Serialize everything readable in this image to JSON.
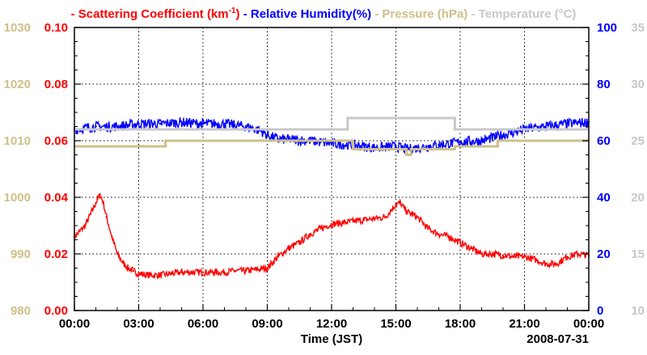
{
  "chart_data": {
    "type": "line",
    "title_legend": [
      {
        "name": "Scattering Coefficient (km",
        "suffix": ")",
        "sup": "-1",
        "color": "#ff0000",
        "marker": "-"
      },
      {
        "name": "Relative Humidity(%)",
        "color": "#0000ff",
        "marker": "-"
      },
      {
        "name": "Pressure (hPa)",
        "color": "#cdc08a",
        "marker": "-"
      },
      {
        "name": "Temperature (°C)",
        "color": "#c8c8c8",
        "marker": "-"
      }
    ],
    "xlabel": "Time (JST)",
    "date_label": "2008-07-31",
    "x_range": [
      0,
      24
    ],
    "x_ticks": [
      {
        "value": 0,
        "label": "00:00"
      },
      {
        "value": 3,
        "label": "03:00"
      },
      {
        "value": 6,
        "label": "06:00"
      },
      {
        "value": 9,
        "label": "09:00"
      },
      {
        "value": 12,
        "label": "12:00"
      },
      {
        "value": 15,
        "label": "15:00"
      },
      {
        "value": 18,
        "label": "18:00"
      },
      {
        "value": 21,
        "label": "21:00"
      },
      {
        "value": 24,
        "label": "00:00"
      }
    ],
    "axes": {
      "pressure": {
        "range": [
          980,
          1030
        ],
        "ticks": [
          "980",
          "990",
          "1000",
          "1010",
          "1020",
          "1030"
        ],
        "color": "#cdc08a",
        "side": "left-outer"
      },
      "scattering": {
        "range": [
          0,
          0.1
        ],
        "ticks": [
          "0.00",
          "0.02",
          "0.04",
          "0.06",
          "0.08",
          "0.10"
        ],
        "color": "#ff0000",
        "side": "left-inner"
      },
      "humidity": {
        "range": [
          0,
          100
        ],
        "ticks": [
          "0",
          "20",
          "40",
          "60",
          "80",
          "100"
        ],
        "color": "#0000ff",
        "side": "right-inner"
      },
      "temperature": {
        "range": [
          10,
          35
        ],
        "ticks": [
          "10",
          "15",
          "20",
          "25",
          "30",
          "35"
        ],
        "color": "#c8c8c8",
        "side": "right-outer"
      }
    },
    "series": [
      {
        "name": "Scattering Coefficient",
        "axis": "scattering",
        "color": "#ff0000",
        "x": [
          0.0,
          0.25,
          0.5,
          0.75,
          1.0,
          1.2,
          1.35,
          1.5,
          1.75,
          2.0,
          2.25,
          2.5,
          2.75,
          3.0,
          3.5,
          4.0,
          4.5,
          5.0,
          5.5,
          6.0,
          6.5,
          7.0,
          7.5,
          8.0,
          8.5,
          9.0,
          9.5,
          10.0,
          10.5,
          11.0,
          11.5,
          12.0,
          12.5,
          13.0,
          13.5,
          14.0,
          14.5,
          15.0,
          15.2,
          15.5,
          16.0,
          16.5,
          17.0,
          17.5,
          18.0,
          18.5,
          19.0,
          19.5,
          20.0,
          20.5,
          21.0,
          21.5,
          22.0,
          22.5,
          23.0,
          23.5,
          24.0
        ],
        "values": [
          0.026,
          0.028,
          0.03,
          0.034,
          0.038,
          0.041,
          0.038,
          0.033,
          0.026,
          0.02,
          0.017,
          0.015,
          0.014,
          0.013,
          0.0125,
          0.0125,
          0.013,
          0.0135,
          0.0135,
          0.0135,
          0.0135,
          0.0135,
          0.014,
          0.014,
          0.0145,
          0.015,
          0.019,
          0.022,
          0.024,
          0.027,
          0.029,
          0.0305,
          0.031,
          0.0315,
          0.032,
          0.0325,
          0.033,
          0.0375,
          0.038,
          0.035,
          0.033,
          0.029,
          0.027,
          0.026,
          0.024,
          0.022,
          0.02,
          0.02,
          0.0195,
          0.019,
          0.019,
          0.018,
          0.0165,
          0.0165,
          0.019,
          0.02,
          0.0195
        ]
      },
      {
        "name": "Relative Humidity",
        "axis": "humidity",
        "color": "#0000ff",
        "x": [
          0.0,
          1.0,
          2.0,
          3.0,
          4.0,
          5.0,
          6.0,
          7.0,
          8.0,
          8.7,
          9.0,
          9.5,
          10.0,
          11.0,
          12.0,
          13.0,
          14.0,
          15.0,
          15.5,
          16.0,
          16.5,
          17.0,
          18.0,
          19.0,
          19.5,
          20.0,
          21.0,
          22.0,
          23.0,
          24.0
        ],
        "values": [
          64,
          65,
          65,
          66,
          66,
          66.5,
          66,
          66,
          65,
          63.5,
          62,
          60.5,
          60.5,
          60,
          59,
          58.5,
          57.5,
          58,
          57,
          57.5,
          58,
          58.5,
          59.5,
          60,
          61,
          62,
          64,
          65,
          66,
          66.5
        ]
      },
      {
        "name": "Pressure",
        "axis": "pressure",
        "color": "#cdc08a",
        "step": true,
        "x": [
          0.0,
          4.25,
          4.25,
          13.0,
          13.0,
          15.5,
          15.5,
          15.7,
          15.7,
          17.75,
          17.75,
          19.75,
          19.75,
          24.0
        ],
        "values": [
          1009,
          1009,
          1010,
          1010,
          1008.5,
          1008.5,
          1007.5,
          1007.5,
          1008.5,
          1008.5,
          1009,
          1009,
          1010,
          1010
        ]
      },
      {
        "name": "Temperature",
        "axis": "temperature",
        "color": "#c8c8c8",
        "step": true,
        "x": [
          0.0,
          12.75,
          12.75,
          17.75,
          17.75,
          24.0
        ],
        "values": [
          26,
          26,
          27,
          27,
          26,
          26
        ]
      }
    ],
    "grid": true
  }
}
